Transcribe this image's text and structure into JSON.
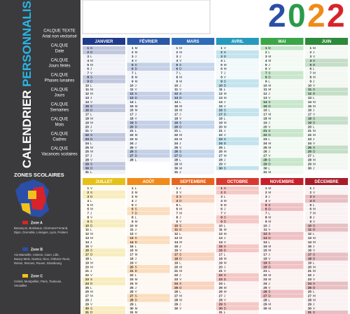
{
  "panel": {
    "title_a": "CALENDRIER",
    "title_b": "PERSONNALISABLE",
    "layers": [
      [
        "CALQUE TEXTE",
        "Arial non vectorisé"
      ],
      [
        "CALQUE",
        "Date"
      ],
      [
        "CALQUE",
        "Jours fériés"
      ],
      [
        "CALQUE",
        "Phases lunaires"
      ],
      [
        "CALQUE",
        "Jours"
      ],
      [
        "CALQUE",
        "Semaines"
      ],
      [
        "CALQUE",
        "Mois"
      ],
      [
        "CALQUE",
        "Cadres"
      ],
      [
        "CALQUE",
        "Vacances scolaires"
      ]
    ],
    "zones_title": "ZONES SCOLAIRES",
    "zones": [
      {
        "name": "Zone A",
        "color": "#d8232a",
        "cities": "Besançon, Bordeaux, Clermont-Ferrand, Dijon, Grenoble, Limoges, Lyon, Poitiers"
      },
      {
        "name": "Zone B",
        "color": "#2b4fa8",
        "cities": "Aix-Marseille, Amiens, Caen, Lille, Nancy-Metz, Nantes, Nice, Orléans-Tours, Reims, Rennes, Rouen, Strasbourg"
      },
      {
        "name": "Zone C",
        "color": "#f2c21b",
        "cities": "Créteil, Montpellier, Paris, Toulouse, Versailles"
      }
    ]
  },
  "year": "2022",
  "months": [
    {
      "name": "JANVIER",
      "color": "#1f3a8a",
      "letters": "SDLMMJVSDLMMJVSDLMMJVSDLMMJVSDL",
      "days": [
        1,
        2,
        3,
        4,
        5,
        6,
        7,
        8,
        9,
        10,
        11,
        12,
        13,
        14,
        15,
        16,
        17,
        18,
        19,
        20,
        21,
        22,
        23,
        24,
        25,
        26,
        27,
        28,
        29,
        30,
        31
      ]
    },
    {
      "name": "FÉVRIER",
      "color": "#2a56a6",
      "letters": "MMJVSDLMMJVSDLMMJVSDLMMJVSDL",
      "days": [
        1,
        2,
        3,
        4,
        5,
        6,
        7,
        8,
        9,
        10,
        11,
        12,
        13,
        14,
        15,
        16,
        17,
        18,
        19,
        20,
        21,
        22,
        23,
        24,
        25,
        26,
        27,
        28
      ]
    },
    {
      "name": "MARS",
      "color": "#2d6cb6",
      "letters": "MMJVSDLMMJVSDLMMJVSDLMMJVSDLMMJ",
      "days": [
        1,
        2,
        3,
        4,
        5,
        6,
        7,
        8,
        9,
        10,
        11,
        12,
        13,
        14,
        15,
        16,
        17,
        18,
        19,
        20,
        21,
        22,
        23,
        24,
        25,
        26,
        27,
        28,
        29,
        30,
        31
      ]
    },
    {
      "name": "AVRIL",
      "color": "#2699bd",
      "letters": "VSDLMMJVSDLMMJVSDLMMJVSDLMMJVS",
      "days": [
        1,
        2,
        3,
        4,
        5,
        6,
        7,
        8,
        9,
        10,
        11,
        12,
        13,
        14,
        15,
        16,
        17,
        18,
        19,
        20,
        21,
        22,
        23,
        24,
        25,
        26,
        27,
        28,
        29,
        30
      ]
    },
    {
      "name": "MAI",
      "color": "#3aa648",
      "letters": "DLMMJVSDLMMJVSDLMMJVSDLMMJVSDLM",
      "days": [
        1,
        2,
        3,
        4,
        5,
        6,
        7,
        8,
        9,
        10,
        11,
        12,
        13,
        14,
        15,
        16,
        17,
        18,
        19,
        20,
        21,
        22,
        23,
        24,
        25,
        26,
        27,
        28,
        29,
        30,
        31
      ]
    },
    {
      "name": "JUIN",
      "color": "#2d8a3a",
      "letters": "MJVSDLMMJVSDLMMJVSDLMMJVSDLMMJ",
      "days": [
        1,
        2,
        3,
        4,
        5,
        6,
        7,
        8,
        9,
        10,
        11,
        12,
        13,
        14,
        15,
        16,
        17,
        18,
        19,
        20,
        21,
        22,
        23,
        24,
        25,
        26,
        27,
        28,
        29,
        30
      ]
    },
    {
      "name": "JUILLET",
      "color": "#e6c01a",
      "letters": "VSDLMMJVSDLMMJVSDLMMJVSDLMMJVSD",
      "days": [
        1,
        2,
        3,
        4,
        5,
        6,
        7,
        8,
        9,
        10,
        11,
        12,
        13,
        14,
        15,
        16,
        17,
        18,
        19,
        20,
        21,
        22,
        23,
        24,
        25,
        26,
        27,
        28,
        29,
        30,
        31
      ]
    },
    {
      "name": "AOÛT",
      "color": "#f08a1a",
      "letters": "LMMJVSDLMMJVSDLMMJVSDLMMJVSDLMM",
      "days": [
        1,
        2,
        3,
        4,
        5,
        6,
        7,
        8,
        9,
        10,
        11,
        12,
        13,
        14,
        15,
        16,
        17,
        18,
        19,
        20,
        21,
        22,
        23,
        24,
        25,
        26,
        27,
        28,
        29,
        30,
        31
      ]
    },
    {
      "name": "SEPTEMBRE",
      "color": "#e6651e",
      "letters": "JVSDLMMJVSDLMMJVSDLMMJVSDLMMJV",
      "days": [
        1,
        2,
        3,
        4,
        5,
        6,
        7,
        8,
        9,
        10,
        11,
        12,
        13,
        14,
        15,
        16,
        17,
        18,
        19,
        20,
        21,
        22,
        23,
        24,
        25,
        26,
        27,
        28,
        29,
        30
      ]
    },
    {
      "name": "OCTOBRE",
      "color": "#d83a2e",
      "letters": "SDLMMJVSDLMMJVSDLMMJVSDLMMJVSDL",
      "days": [
        1,
        2,
        3,
        4,
        5,
        6,
        7,
        8,
        9,
        10,
        11,
        12,
        13,
        14,
        15,
        16,
        17,
        18,
        19,
        20,
        21,
        22,
        23,
        24,
        25,
        26,
        27,
        28,
        29,
        30,
        31
      ]
    },
    {
      "name": "NOVEMBRE",
      "color": "#c4202a",
      "letters": "MMJVSDLMMJVSDLMMJVSDLMMJVSDLMM",
      "days": [
        1,
        2,
        3,
        4,
        5,
        6,
        7,
        8,
        9,
        10,
        11,
        12,
        13,
        14,
        15,
        16,
        17,
        18,
        19,
        20,
        21,
        22,
        23,
        24,
        25,
        26,
        27,
        28,
        29,
        30
      ]
    },
    {
      "name": "DÉCEMBRE",
      "color": "#a81c28",
      "letters": "JVSDLMMJVSDLMMJVSDLMMJVSDLMMJVS",
      "days": [
        1,
        2,
        3,
        4,
        5,
        6,
        7,
        8,
        9,
        10,
        11,
        12,
        13,
        14,
        15,
        16,
        17,
        18,
        19,
        20,
        21,
        22,
        23,
        24,
        25,
        26,
        27,
        28,
        29,
        30,
        31
      ]
    }
  ]
}
